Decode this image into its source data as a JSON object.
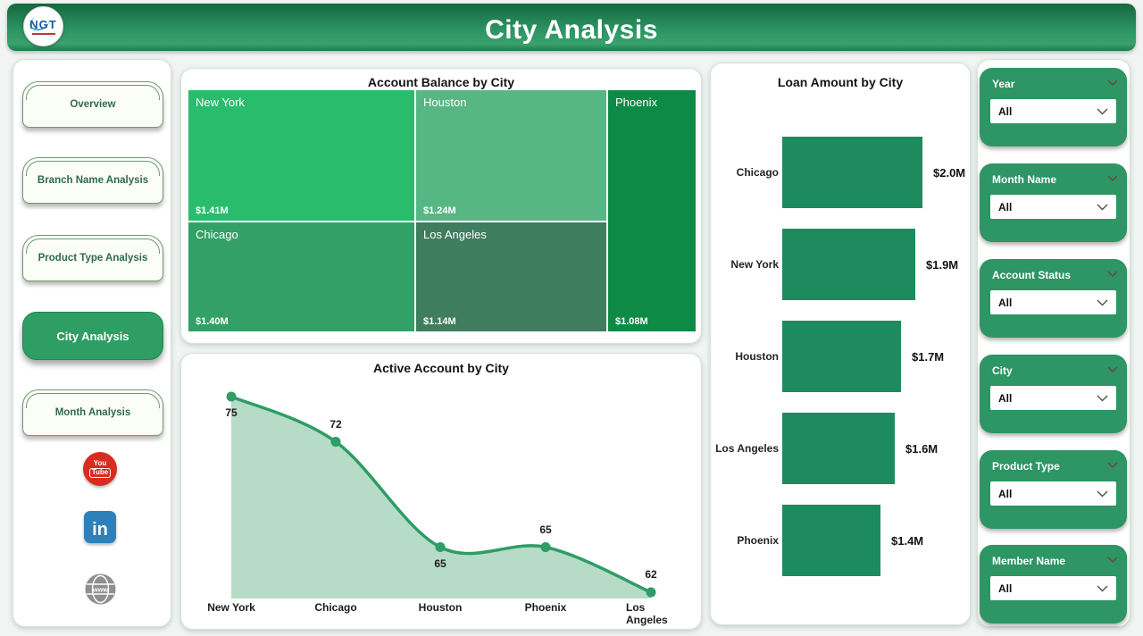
{
  "header": {
    "title": "City Analysis",
    "logo_text": "NGT"
  },
  "sidebar": {
    "items": [
      {
        "label": "Overview",
        "active": false
      },
      {
        "label": "Branch Name Analysis",
        "active": false
      },
      {
        "label": "Product Type Analysis",
        "active": false
      },
      {
        "label": "City Analysis",
        "active": true
      },
      {
        "label": "Month Analysis",
        "active": false
      }
    ],
    "social": [
      {
        "name": "youtube",
        "text_top": "You",
        "text_bottom": "Tube",
        "color": "#d62d20"
      },
      {
        "name": "linkedin",
        "text": "in",
        "color": "#2d80b9"
      },
      {
        "name": "website",
        "text": "www",
        "color": "#8f8f8f"
      }
    ]
  },
  "chart_data": [
    {
      "type": "treemap",
      "title": "Account Balance by City",
      "points": [
        {
          "city": "New York",
          "value": 1.41,
          "value_label": "$1.41M",
          "color": "#2abc6d"
        },
        {
          "city": "Houston",
          "value": 1.24,
          "value_label": "$1.24M",
          "color": "#57b784"
        },
        {
          "city": "Phoenix",
          "value": 1.08,
          "value_label": "$1.08M",
          "color": "#0d8a46"
        },
        {
          "city": "Chicago",
          "value": 1.4,
          "value_label": "$1.40M",
          "color": "#32a067"
        },
        {
          "city": "Los Angeles",
          "value": 1.14,
          "value_label": "$1.14M",
          "color": "#3e7d5e"
        }
      ],
      "units": "USD millions"
    },
    {
      "type": "area",
      "title": "Active Account by City",
      "categories": [
        "New York",
        "Chicago",
        "Houston",
        "Phoenix",
        "Los Angeles"
      ],
      "values": [
        75,
        72,
        65,
        65,
        62
      ],
      "ylim": [
        61,
        75
      ],
      "label_positions": [
        "below",
        "above",
        "below",
        "above",
        "above"
      ],
      "line_color": "#2e9d66",
      "fill_color": "#b2d9c3"
    },
    {
      "type": "bar",
      "orientation": "horizontal",
      "title": "Loan Amount by City",
      "categories": [
        "Chicago",
        "New York",
        "Houston",
        "Los Angeles",
        "Phoenix"
      ],
      "values": [
        2.0,
        1.9,
        1.7,
        1.6,
        1.4
      ],
      "value_labels": [
        "$2.0M",
        "$1.9M",
        "$1.7M",
        "$1.6M",
        "$1.4M"
      ],
      "xlim": [
        0,
        2.0
      ],
      "bar_color": "#1e8b5e"
    }
  ],
  "filters": [
    {
      "label": "Year",
      "value": "All"
    },
    {
      "label": "Month Name",
      "value": "All"
    },
    {
      "label": "Account Status",
      "value": "All"
    },
    {
      "label": "City",
      "value": "All"
    },
    {
      "label": "Product Type",
      "value": "All"
    },
    {
      "label": "Member Name",
      "value": "All"
    }
  ]
}
